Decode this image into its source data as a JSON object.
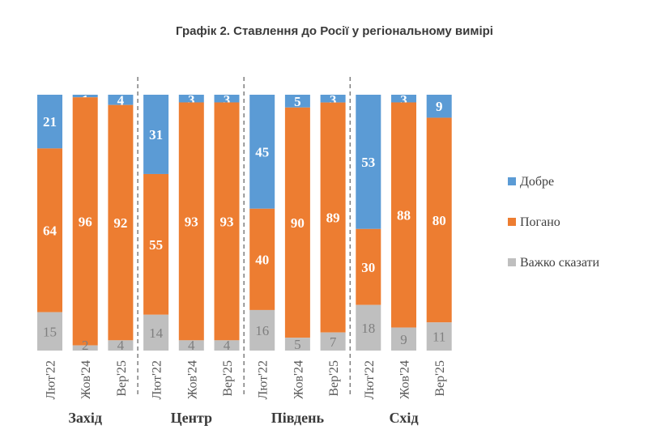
{
  "chart_data": {
    "type": "bar",
    "stacked": true,
    "title": "Графік 2. Ставлення до Росії у регіональному вимірі",
    "groups": [
      "Захід",
      "Центр",
      "Південь",
      "Схід"
    ],
    "categories": [
      "Лют'22",
      "Жов'24",
      "Вер'25"
    ],
    "series": [
      {
        "name": "Добре",
        "color": "#5b9bd5",
        "values": [
          [
            21,
            1,
            4
          ],
          [
            31,
            3,
            3
          ],
          [
            45,
            5,
            3
          ],
          [
            53,
            3,
            9
          ]
        ]
      },
      {
        "name": "Погано",
        "color": "#ed7d31",
        "values": [
          [
            64,
            96,
            92
          ],
          [
            55,
            93,
            93
          ],
          [
            40,
            90,
            89
          ],
          [
            30,
            88,
            80
          ]
        ]
      },
      {
        "name": "Важко сказати",
        "color": "#bfbfbf",
        "values": [
          [
            15,
            2,
            4
          ],
          [
            14,
            4,
            4
          ],
          [
            16,
            5,
            7
          ],
          [
            18,
            9,
            11
          ]
        ]
      }
    ],
    "legend_position": "right",
    "grid": false
  }
}
